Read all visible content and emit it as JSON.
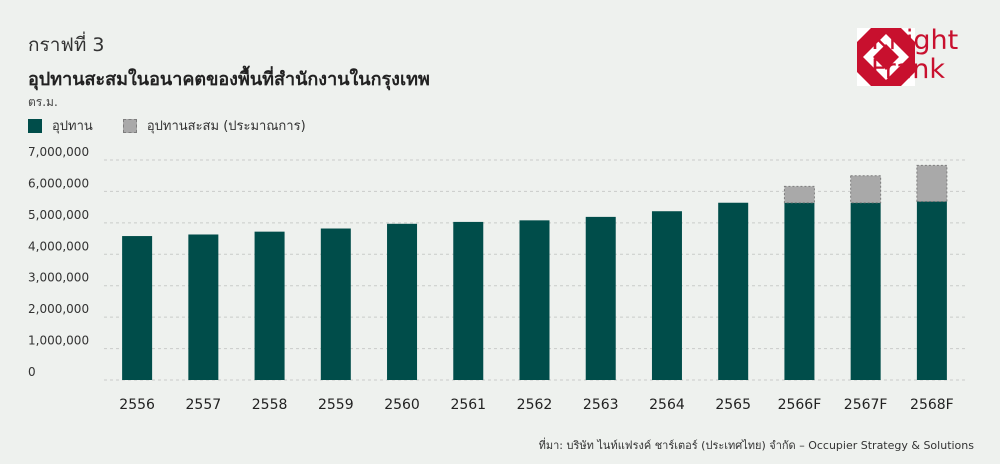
{
  "header": {
    "graph_number": "กราฟที่ 3",
    "title": "อุปทานสะสมในอนาคตของพื้นที่สำนักงานในกรุงเทพ",
    "unit": "ตร.ม."
  },
  "brand": {
    "line1": "Knight",
    "line2": "Frank",
    "color": "#c8102e"
  },
  "legend": {
    "actual": "อุปทาน",
    "forecast": "อุปทานสะสม (ประมาณการ)"
  },
  "colors": {
    "actual": "#004d4a",
    "forecast": "#a9a9a9",
    "grid": "#c9ccc9"
  },
  "source": "ที่มา: บริษัท ไนท์แฟรงค์ ชาร์เตอร์ (ประเทศไทย) จำกัด – Occupier Strategy & Solutions",
  "chart_data": {
    "type": "bar",
    "stacked": true,
    "categories": [
      "2556",
      "2557",
      "2558",
      "2559",
      "2560",
      "2561",
      "2562",
      "2563",
      "2564",
      "2565",
      "2566F",
      "2567F",
      "2568F"
    ],
    "series": [
      {
        "name": "อุปทาน",
        "values": [
          4580000,
          4630000,
          4720000,
          4820000,
          4970000,
          5030000,
          5080000,
          5190000,
          5370000,
          5640000,
          5640000,
          5640000,
          5680000
        ]
      },
      {
        "name": "อุปทานสะสม (ประมาณการ)",
        "values": [
          0,
          0,
          0,
          0,
          0,
          0,
          0,
          0,
          0,
          0,
          520000,
          860000,
          1150000
        ]
      }
    ],
    "yticks": [
      "7,000,000",
      "6,000,000",
      "5,000,000",
      "4,000,000",
      "3,000,000",
      "2,000,000",
      "1,000,000",
      "0"
    ],
    "ytick_values": [
      7000000,
      6000000,
      5000000,
      4000000,
      3000000,
      2000000,
      1000000,
      0
    ],
    "ylim": [
      0,
      7000000
    ],
    "grid": true,
    "legend_position": "top-left"
  }
}
